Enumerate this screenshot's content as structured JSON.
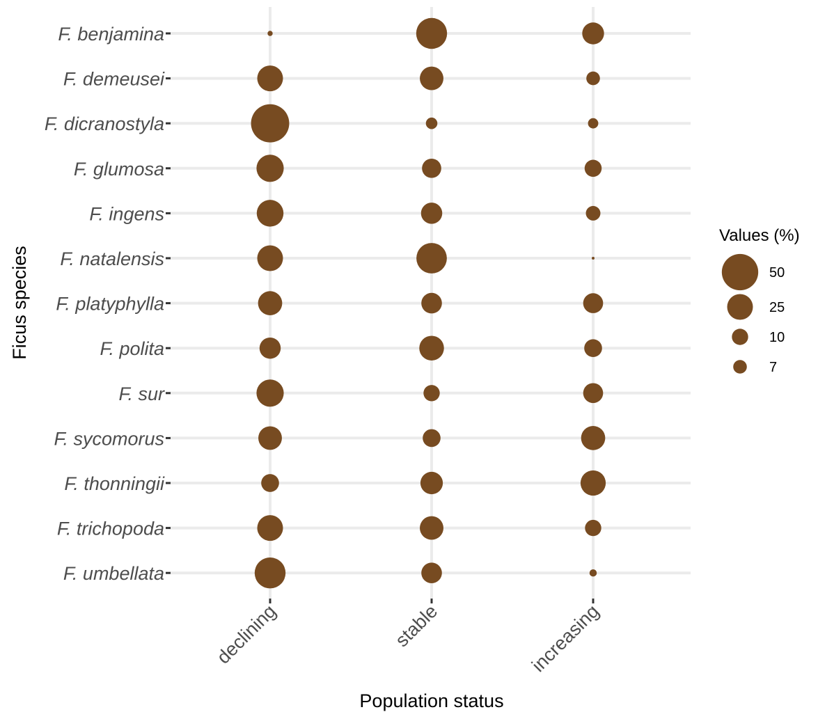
{
  "chart_data": {
    "type": "scatter",
    "subtype": "bubble",
    "xlabel": "Population status",
    "ylabel": "Ficus species",
    "categories_x": [
      "declining",
      "stable",
      "increasing"
    ],
    "categories_y": [
      "F. benjamina",
      "F. demeusei",
      "F. dicranostyla",
      "F. glumosa",
      "F. ingens",
      "F. natalensis",
      "F. platyphylla",
      "F. polita",
      "F. sur",
      "F. sycomorus",
      "F. thonningii",
      "F. trichopoda",
      "F. umbellata"
    ],
    "series": [
      {
        "values": [
          [
            1,
            36,
            18
          ],
          [
            25,
            21,
            7
          ],
          [
            55,
            5,
            4
          ],
          [
            28,
            14,
            11
          ],
          [
            27,
            17,
            8
          ],
          [
            25,
            35,
            0.1
          ],
          [
            22,
            16,
            15
          ],
          [
            17,
            23,
            12
          ],
          [
            28,
            10,
            15
          ],
          [
            21,
            12,
            22
          ],
          [
            12,
            19,
            24
          ],
          [
            25,
            21,
            10
          ],
          [
            36,
            16,
            2
          ]
        ]
      }
    ],
    "size_legend": {
      "title": "Values (%)",
      "breaks": [
        50,
        25,
        10,
        7
      ],
      "labels": [
        "50",
        "25",
        "10",
        "7"
      ]
    },
    "point_color": "#774b21",
    "grid": true,
    "legend_position": "right"
  }
}
